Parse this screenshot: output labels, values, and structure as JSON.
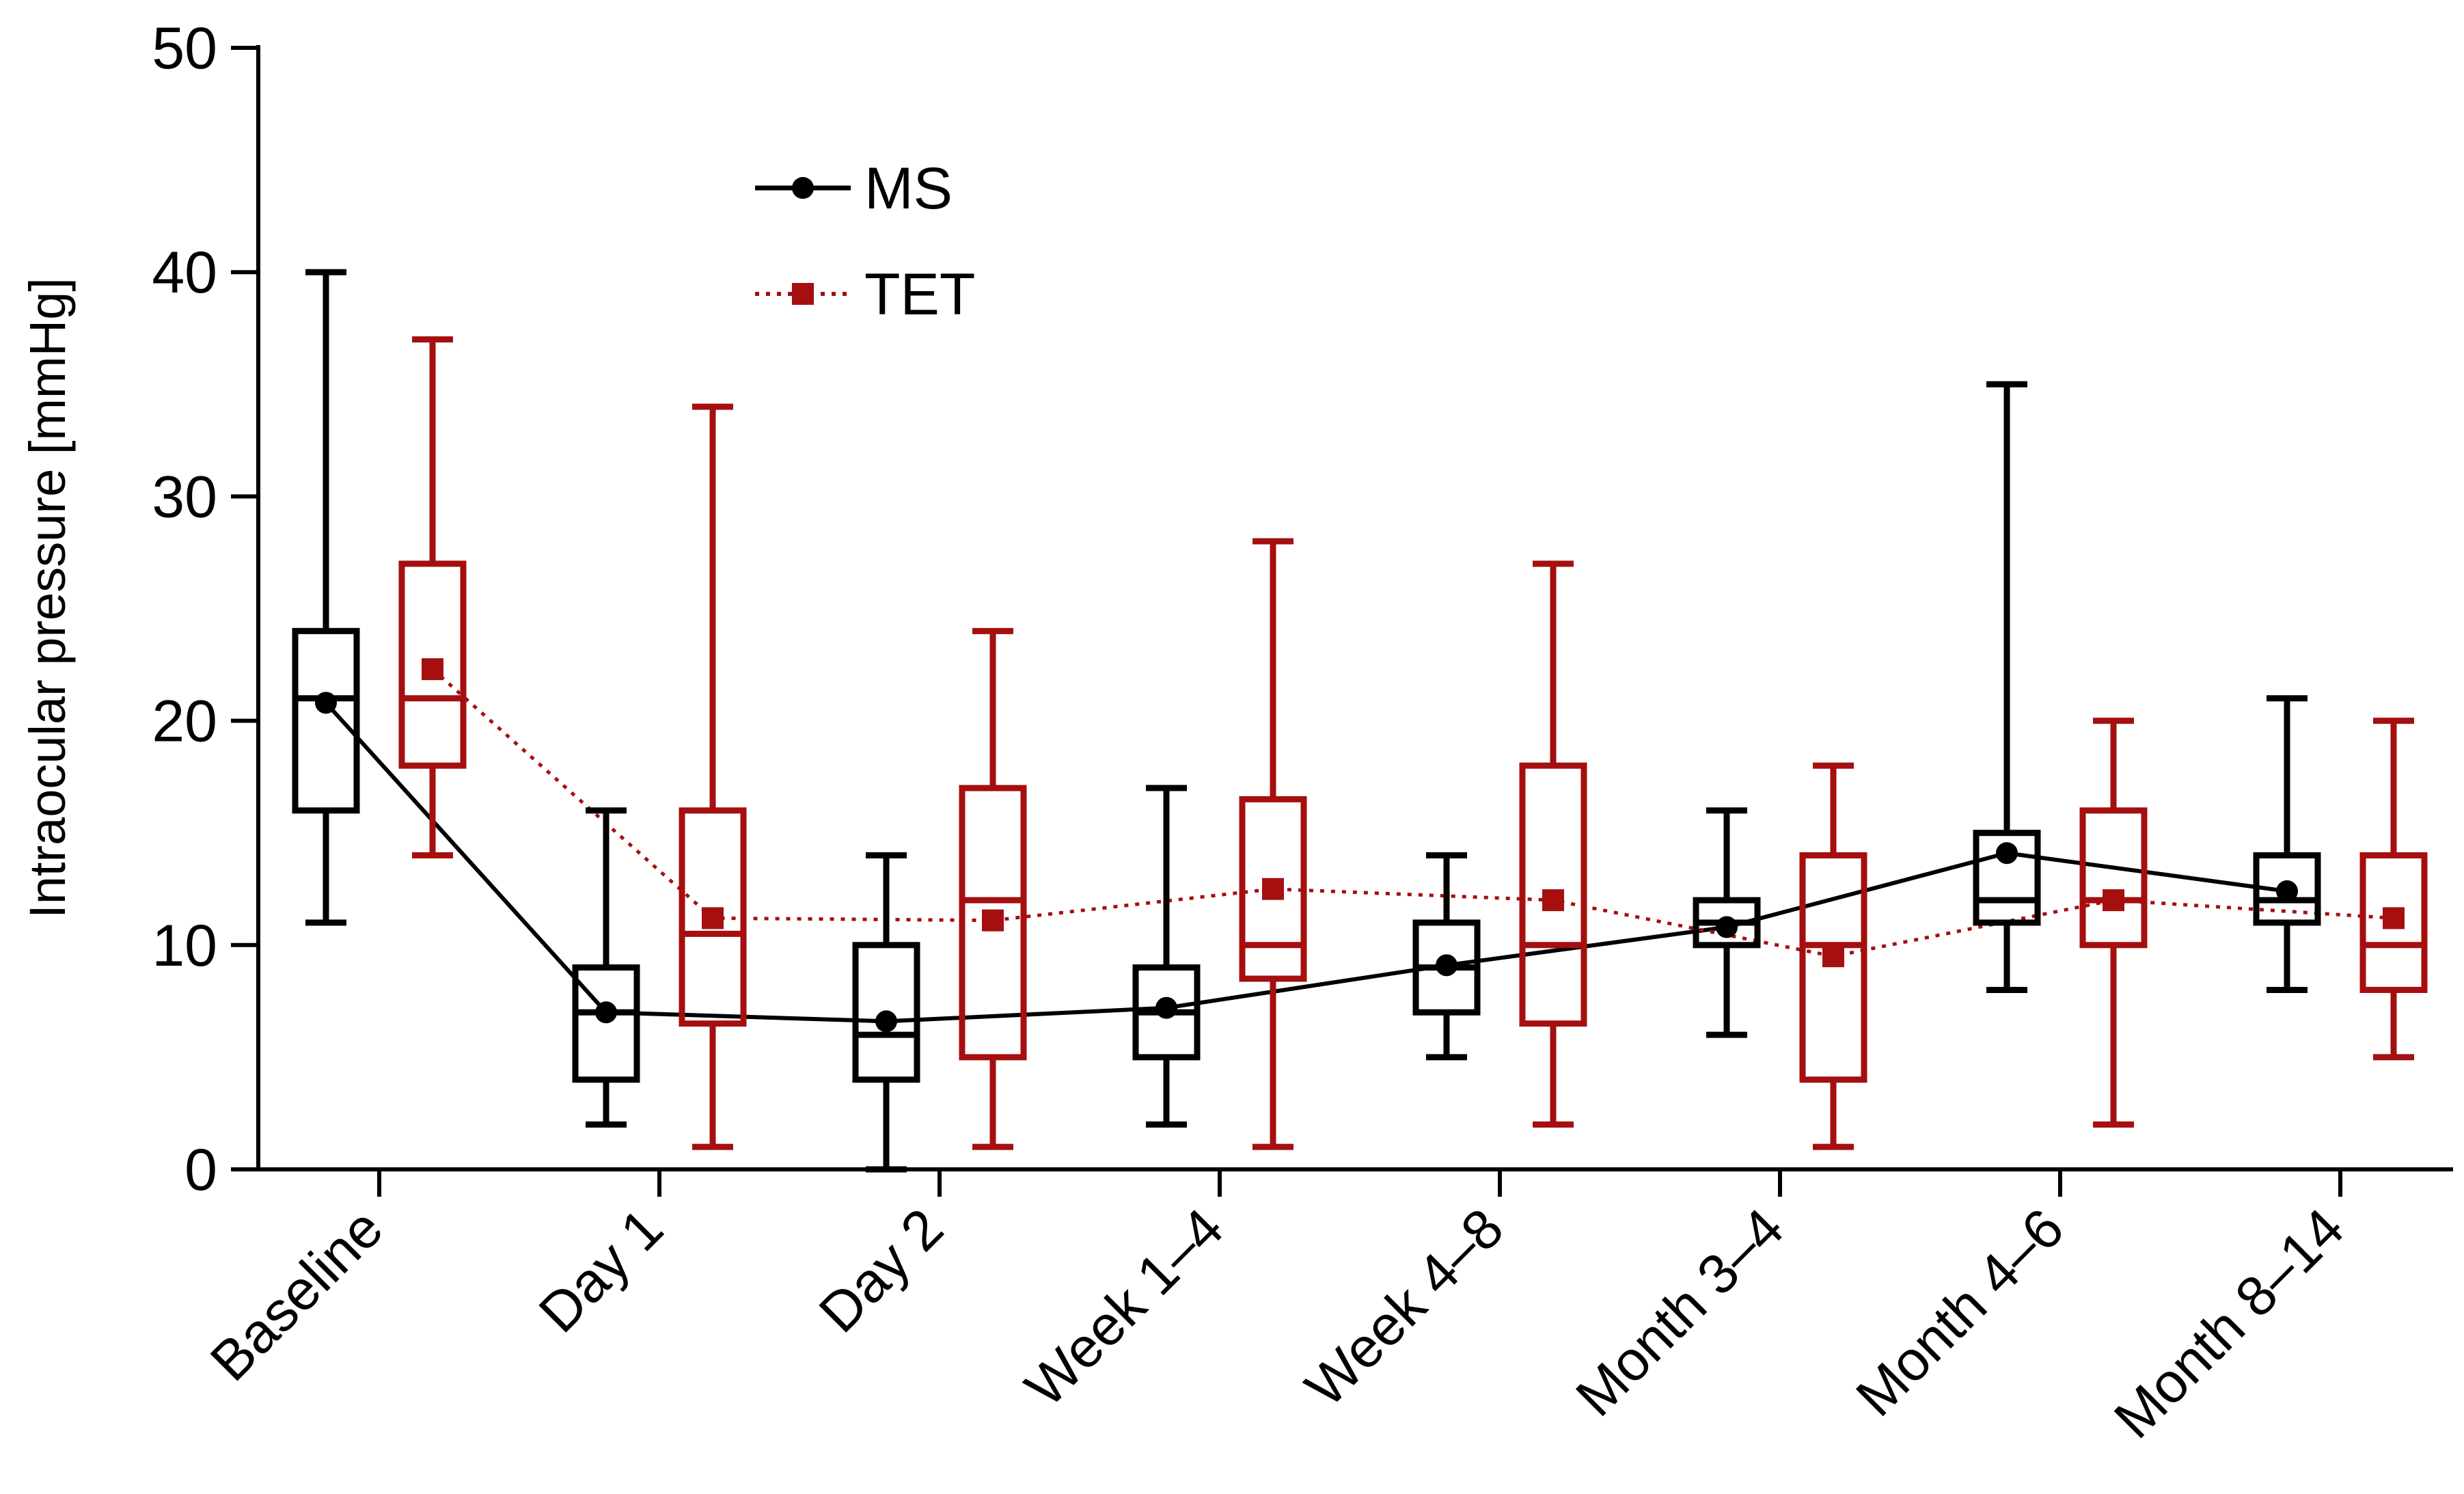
{
  "chart_data": {
    "type": "box",
    "xlabel": "",
    "ylabel": "Intraocular pressure [mmHg]",
    "ylim": [
      0,
      50
    ],
    "yticks": [
      0,
      10,
      20,
      30,
      40,
      50
    ],
    "grid": false,
    "legend_position": "top-center",
    "categories": [
      "Baseline",
      "Day 1",
      "Day 2",
      "Week 1–4",
      "Week 4–8",
      "Month 3–4",
      "Month 4–6",
      "Month 8–14"
    ],
    "series": [
      {
        "name": "MS",
        "color": "#000000",
        "line_style": "solid",
        "marker": "circle",
        "boxes": [
          {
            "min": 11,
            "q1": 16,
            "median": 21,
            "q3": 24,
            "max": 40,
            "mean": 20.8
          },
          {
            "min": 2,
            "q1": 4,
            "median": 7,
            "q3": 9,
            "max": 16,
            "mean": 7.0
          },
          {
            "min": 0,
            "q1": 4,
            "median": 6,
            "q3": 10,
            "max": 14,
            "mean": 6.6
          },
          {
            "min": 2,
            "q1": 5,
            "median": 7,
            "q3": 9,
            "max": 17,
            "mean": 7.2
          },
          {
            "min": 5,
            "q1": 7,
            "median": 9,
            "q3": 11,
            "max": 14,
            "mean": 9.1
          },
          {
            "min": 6,
            "q1": 10,
            "median": 11,
            "q3": 12,
            "max": 16,
            "mean": 10.8
          },
          {
            "min": 8,
            "q1": 11,
            "median": 12,
            "q3": 15,
            "max": 35,
            "mean": 14.1
          },
          {
            "min": 8,
            "q1": 11,
            "median": 12,
            "q3": 14,
            "max": 21,
            "mean": 12.4
          }
        ]
      },
      {
        "name": "TET",
        "color": "#a50f0f",
        "line_style": "dotted",
        "marker": "square",
        "boxes": [
          {
            "min": 14,
            "q1": 18,
            "median": 21,
            "q3": 27,
            "max": 37,
            "mean": 22.3
          },
          {
            "min": 1,
            "q1": 6.5,
            "median": 10.5,
            "q3": 16,
            "max": 34,
            "mean": 11.2
          },
          {
            "min": 1,
            "q1": 5,
            "median": 12,
            "q3": 17,
            "max": 24,
            "mean": 11.1
          },
          {
            "min": 1,
            "q1": 8.5,
            "median": 10,
            "q3": 16.5,
            "max": 28,
            "mean": 12.5
          },
          {
            "min": 2,
            "q1": 6.5,
            "median": 10,
            "q3": 18,
            "max": 27,
            "mean": 12.0
          },
          {
            "min": 1,
            "q1": 4,
            "median": 10,
            "q3": 14,
            "max": 18,
            "mean": 9.5
          },
          {
            "min": 2,
            "q1": 10,
            "median": 12,
            "q3": 16,
            "max": 20,
            "mean": 12.0
          },
          {
            "min": 5,
            "q1": 8,
            "median": 10,
            "q3": 14,
            "max": 20,
            "mean": 11.2
          }
        ]
      }
    ]
  }
}
